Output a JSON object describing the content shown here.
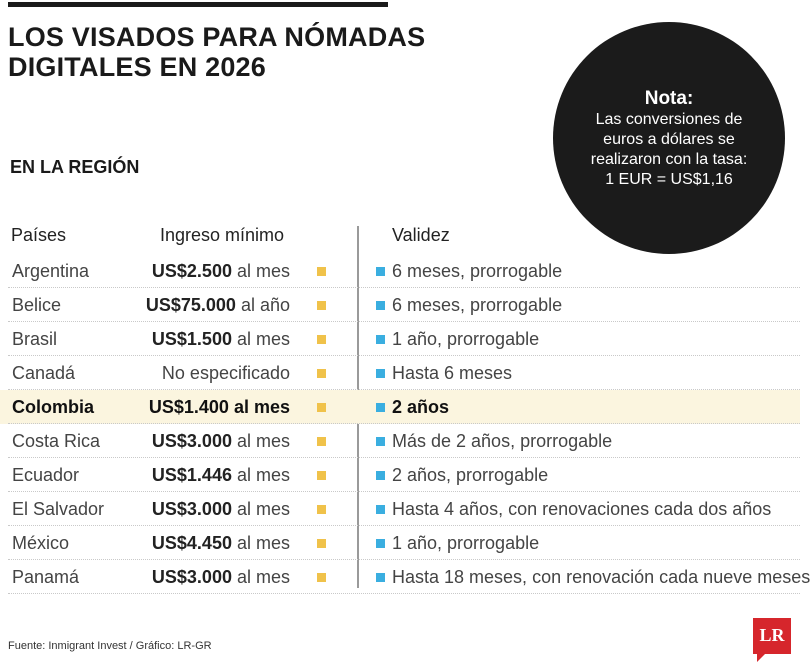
{
  "title": "LOS VISADOS PARA NÓMADAS DIGITALES EN 2026",
  "note": {
    "title": "Nota:",
    "body": "Las conversiones de euros a dólares se realizaron con la tasa:",
    "rate": "1 EUR = US$1,16"
  },
  "section": "EN LA REGIÓN",
  "headers": {
    "country": "Países",
    "income": "Ingreso mínimo",
    "validity": "Validez"
  },
  "rows": [
    {
      "country": "Argentina",
      "amount": "US$2.500",
      "period": "al mes",
      "validity": "6 meses, prorrogable"
    },
    {
      "country": "Belice",
      "amount": "US$75.000",
      "period": "al año",
      "validity": "6 meses, prorrogable"
    },
    {
      "country": "Brasil",
      "amount": "US$1.500",
      "period": "al mes",
      "validity": "1 año, prorrogable"
    },
    {
      "country": "Canadá",
      "amount": "No especificado",
      "period": "",
      "validity": "Hasta 6 meses"
    },
    {
      "country": "Colombia",
      "amount": "US$1.400",
      "period": "al mes",
      "validity": "2 años"
    },
    {
      "country": "Costa Rica",
      "amount": "US$3.000",
      "period": "al mes",
      "validity": "Más de 2 años, prorrogable"
    },
    {
      "country": "Ecuador",
      "amount": "US$1.446",
      "period": "al mes",
      "validity": "2 años, prorrogable"
    },
    {
      "country": "El Salvador",
      "amount": "US$3.000",
      "period": "al mes",
      "validity": "Hasta 4 años, con renovaciones cada dos años"
    },
    {
      "country": "México",
      "amount": "US$4.450",
      "period": "al mes",
      "validity": "1 año, prorrogable"
    },
    {
      "country": "Panamá",
      "amount": "US$3.000",
      "period": "al mes",
      "validity": "Hasta 18 meses, con renovación cada nueve meses"
    }
  ],
  "highlight_country": "Colombia",
  "source": "Fuente: Inmigrant Invest / Gráfico: LR-GR",
  "logo": "LR",
  "colors": {
    "income_marker": "#f0c24a",
    "validity_marker": "#3aaee0",
    "highlight_row": "#fbf5df"
  }
}
